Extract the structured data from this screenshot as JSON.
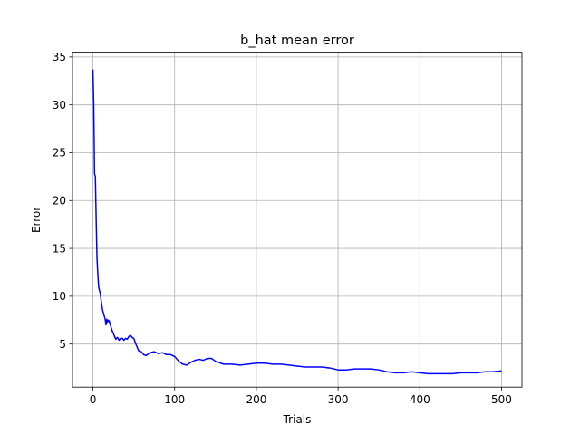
{
  "chart_data": {
    "type": "line",
    "title": "b_hat mean error",
    "xlabel": "Trials",
    "ylabel": "Error",
    "xlim": [
      -25,
      525
    ],
    "ylim": [
      0.5,
      35.5
    ],
    "grid": true,
    "x_ticks": [
      0,
      100,
      200,
      300,
      400,
      500
    ],
    "y_ticks": [
      5,
      10,
      15,
      20,
      25,
      30,
      35
    ],
    "x_tick_labels": [
      "0",
      "100",
      "200",
      "300",
      "400",
      "500"
    ],
    "y_tick_labels": [
      "5",
      "10",
      "15",
      "20",
      "25",
      "30",
      "35"
    ],
    "series": [
      {
        "color": "#0000ff",
        "x": [
          0,
          1,
          2,
          3,
          4,
          5,
          6,
          7,
          8,
          9,
          10,
          11,
          12,
          13,
          14,
          15,
          16,
          17,
          18,
          19,
          20,
          22,
          24,
          26,
          28,
          30,
          32,
          34,
          36,
          38,
          40,
          42,
          44,
          46,
          48,
          50,
          53,
          56,
          59,
          62,
          65,
          70,
          75,
          80,
          85,
          90,
          95,
          100,
          105,
          110,
          115,
          120,
          125,
          130,
          135,
          140,
          145,
          150,
          160,
          170,
          180,
          190,
          200,
          210,
          220,
          230,
          240,
          250,
          260,
          270,
          280,
          290,
          300,
          310,
          320,
          330,
          340,
          350,
          360,
          370,
          380,
          390,
          400,
          410,
          420,
          430,
          440,
          450,
          460,
          470,
          480,
          490,
          500
        ],
        "y": [
          33.7,
          30.0,
          22.8,
          22.5,
          18.0,
          14.0,
          12.3,
          11.0,
          10.6,
          10.3,
          9.6,
          9.0,
          8.5,
          8.2,
          7.9,
          7.6,
          7.0,
          7.6,
          7.3,
          7.5,
          7.4,
          6.8,
          6.3,
          5.9,
          5.5,
          5.7,
          5.4,
          5.6,
          5.6,
          5.4,
          5.6,
          5.5,
          5.8,
          5.9,
          5.7,
          5.6,
          4.9,
          4.3,
          4.2,
          3.9,
          3.8,
          4.1,
          4.2,
          4.0,
          4.1,
          3.9,
          3.9,
          3.7,
          3.2,
          2.9,
          2.8,
          3.1,
          3.3,
          3.4,
          3.3,
          3.5,
          3.5,
          3.2,
          2.9,
          2.9,
          2.8,
          2.9,
          3.0,
          3.0,
          2.9,
          2.9,
          2.8,
          2.7,
          2.6,
          2.6,
          2.6,
          2.5,
          2.3,
          2.3,
          2.4,
          2.4,
          2.4,
          2.3,
          2.1,
          2.0,
          2.0,
          2.1,
          2.0,
          1.9,
          1.9,
          1.9,
          1.9,
          2.0,
          2.0,
          2.0,
          2.1,
          2.1,
          2.2
        ]
      }
    ]
  }
}
